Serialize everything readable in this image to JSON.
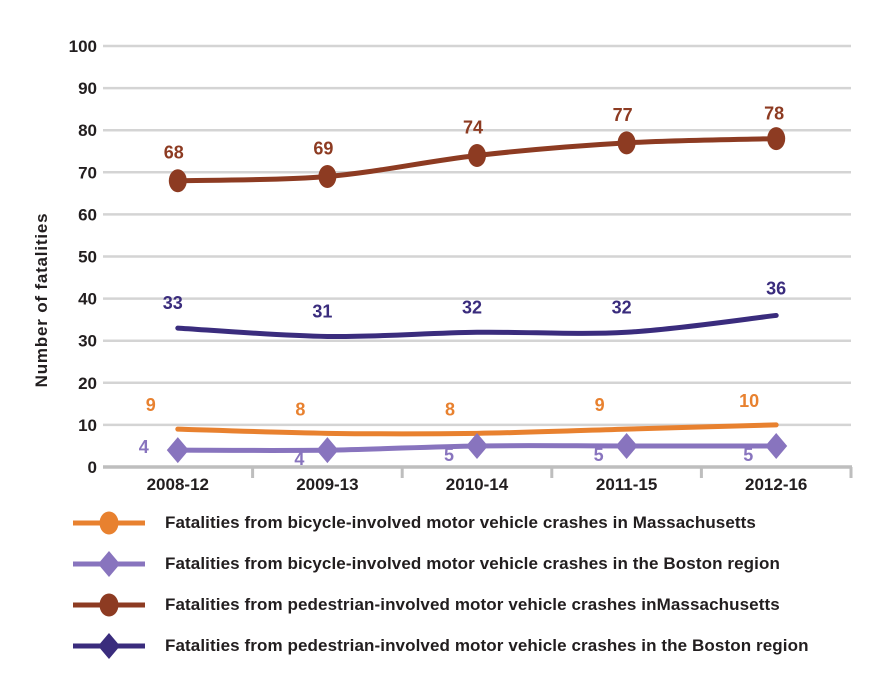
{
  "page": {
    "background": "#FFFFFF"
  },
  "chart_data": {
    "type": "line",
    "title": "",
    "xlabel": "",
    "ylabel": "Number of fatalities",
    "categories": [
      "2008-12",
      "2009-13",
      "2010-14",
      "2011-15",
      "2012-16"
    ],
    "ylim": [
      0,
      100
    ],
    "ytick_step": 10,
    "grid": "horizontal",
    "legend_position": "bottom-left",
    "gridline_color": "#D4D4D4",
    "axis_color": "#BEBEBE",
    "text_color": "#221E1F",
    "series": [
      {
        "name": "Fatalities from bicycle-involved motor vehicle crashes in Massachusetts",
        "values": [
          9,
          8,
          8,
          9,
          10
        ],
        "color": "#E8812F",
        "marker": "none",
        "legend_marker": "circle",
        "label_offset": [
          -27,
          -24
        ],
        "label_offset_overrides": {}
      },
      {
        "name": "Fatalities from bicycle-involved motor vehicle crashes in the Boston region",
        "values": [
          4,
          4,
          5,
          5,
          5
        ],
        "color": "#8874BE",
        "marker": "diamond",
        "legend_marker": "diamond",
        "label_offset": [
          -28,
          9
        ],
        "label_offset_overrides": {
          "0": [
            -34,
            -3
          ]
        }
      },
      {
        "name": "Fatalities from pedestrian-involved motor vehicle crashes inMassachusetts",
        "values": [
          68,
          69,
          74,
          77,
          78
        ],
        "color": "#8D3B22",
        "marker": "circle",
        "legend_marker": "circle",
        "label_offset": [
          -4,
          -28
        ],
        "label_offset_overrides": {
          "4": [
            -2,
            -25
          ]
        }
      },
      {
        "name": "Fatalities from pedestrian-involved motor vehicle crashes in the Boston region",
        "values": [
          33,
          31,
          32,
          32,
          36
        ],
        "color": "#3A2C7D",
        "marker": "none",
        "legend_marker": "diamond",
        "label_offset": [
          -5,
          -25
        ],
        "label_offset_overrides": {
          "4": [
            0,
            -27
          ]
        }
      }
    ]
  }
}
